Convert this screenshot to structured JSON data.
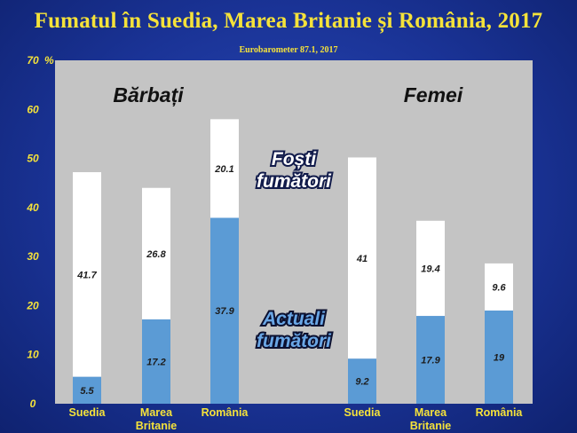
{
  "chart_data": {
    "type": "bar",
    "stacked": true,
    "title": "Fumatul în Suedia, Marea Britanie și România, 2017",
    "subtitle": "Eurobarometer 87.1, 2017",
    "ylim": [
      0,
      70
    ],
    "yticks": [
      "0",
      "10",
      "20",
      "30",
      "40",
      "50",
      "60",
      "70"
    ],
    "yunit": "%",
    "grid": false,
    "legend": "none",
    "groups": [
      {
        "label": "Bărbați",
        "categories": [
          "Suedia",
          [
            "Marea",
            "Britanie"
          ],
          "România"
        ]
      },
      {
        "label": "Femei",
        "categories": [
          "Suedia",
          [
            "Marea",
            "Britanie"
          ],
          "România"
        ]
      }
    ],
    "series": [
      {
        "name": "Actuali fumători",
        "color": "#5b9bd5",
        "values": [
          5.5,
          17.2,
          37.9,
          9.2,
          17.9,
          19
        ]
      },
      {
        "name": "Foști fumători",
        "color": "#ffffff",
        "values": [
          41.7,
          26.8,
          20.1,
          41,
          19.4,
          9.6
        ]
      }
    ],
    "data_labels": {
      "current": [
        "5.5",
        "17.2",
        "37.9",
        "9.2",
        "17.9",
        "19"
      ],
      "former": [
        "41.7",
        "26.8",
        "20.1",
        "41",
        "19.4",
        "9.6"
      ]
    },
    "annotations": {
      "former_line1": "Foști",
      "former_line2": "fumători",
      "current_line1": "Actuali",
      "current_line2": "fumători"
    },
    "plot_background": "#c4c4c4",
    "text_color": "#f5e23a"
  }
}
